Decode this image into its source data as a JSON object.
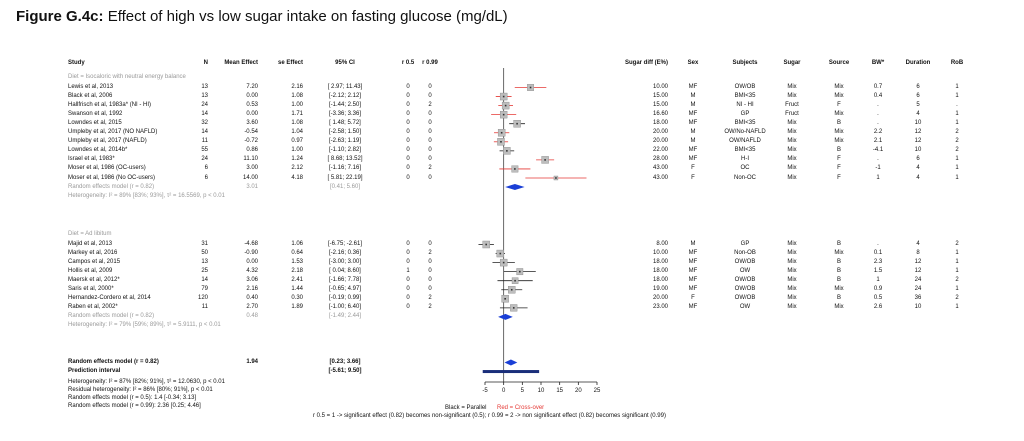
{
  "title": {
    "label": "Figure G.4c:",
    "text": "Effect of high vs low sugar intake on fasting glucose (mg/dL)"
  },
  "headers": {
    "study": "Study",
    "n": "N",
    "mean": "Mean Effect",
    "se": "se Effect",
    "ci": "95% CI",
    "r05": "r 0.5",
    "r099": "r 0.99",
    "sugar_diff": "Sugar diff (E%)",
    "sex": "Sex",
    "subjects": "Subjects",
    "sugar": "Sugar",
    "source": "Source",
    "bw": "BW*",
    "duration": "Duration",
    "rob": "RoB"
  },
  "groups": [
    {
      "label": "Diet = Isocaloric with neutral energy balance",
      "rows": [
        {
          "study": "Lewis et al, 2013",
          "n": "13",
          "mean": "7.20",
          "se": "2.16",
          "ci": "[ 2.97; 11.43]",
          "r05": "0",
          "r099": "0",
          "sugar_diff": "10.00",
          "sex": "MF",
          "subjects": "OW/OB",
          "sugar": "Mix",
          "source": "Mix",
          "bw": "0.7",
          "duration": "6",
          "rob": "1"
        },
        {
          "study": "Black et al, 2006",
          "n": "13",
          "mean": "0.00",
          "se": "1.08",
          "ci": "[-2.12; 2.12]",
          "r05": "0",
          "r099": "0",
          "sugar_diff": "15.00",
          "sex": "M",
          "subjects": "BMI<35",
          "sugar": "Mix",
          "source": "Mix",
          "bw": "0.4",
          "duration": "6",
          "rob": "1"
        },
        {
          "study": "Hallfrisch et al, 1983a* (NI - HI)",
          "n": "24",
          "mean": "0.53",
          "se": "1.00",
          "ci": "[-1.44; 2.50]",
          "r05": "0",
          "r099": "2",
          "sugar_diff": "15.00",
          "sex": "M",
          "subjects": "NI - HI",
          "sugar": "Fruct",
          "source": "F",
          "bw": ".",
          "duration": "5",
          "rob": "."
        },
        {
          "study": "Swanson et al, 1992",
          "n": "14",
          "mean": "0.00",
          "se": "1.71",
          "ci": "[-3.36; 3.36]",
          "r05": "0",
          "r099": "0",
          "sugar_diff": "16.60",
          "sex": "MF",
          "subjects": "GP",
          "sugar": "Fruct",
          "source": "Mix",
          "bw": ".",
          "duration": "4",
          "rob": "1"
        },
        {
          "study": "Lowndes et al, 2015",
          "n": "32",
          "mean": "3.60",
          "se": "1.08",
          "ci": "[ 1.48; 5.72]",
          "r05": "0",
          "r099": "0",
          "sugar_diff": "18.00",
          "sex": "MF",
          "subjects": "BMI<35",
          "sugar": "Mix",
          "source": "B",
          "bw": ".",
          "duration": "10",
          "rob": "1"
        },
        {
          "study": "Umpleby et al, 2017 (NO NAFLD)",
          "n": "14",
          "mean": "-0.54",
          "se": "1.04",
          "ci": "[-2.58; 1.50]",
          "r05": "0",
          "r099": "0",
          "sugar_diff": "20.00",
          "sex": "M",
          "subjects": "OW/No-NAFLD",
          "sugar": "Mix",
          "source": "Mix",
          "bw": "2.2",
          "duration": "12",
          "rob": "2"
        },
        {
          "study": "Umpleby et al, 2017 (NAFLD)",
          "n": "11",
          "mean": "-0.72",
          "se": "0.97",
          "ci": "[-2.63; 1.19]",
          "r05": "0",
          "r099": "0",
          "sugar_diff": "20.00",
          "sex": "M",
          "subjects": "OW/NAFLD",
          "sugar": "Mix",
          "source": "Mix",
          "bw": "2.1",
          "duration": "12",
          "rob": "2"
        },
        {
          "study": "Lowndes et al, 2014b*",
          "n": "55",
          "mean": "0.86",
          "se": "1.00",
          "ci": "[-1.10; 2.82]",
          "r05": "0",
          "r099": "0",
          "sugar_diff": "22.00",
          "sex": "MF",
          "subjects": "BMI<35",
          "sugar": "Mix",
          "source": "B",
          "bw": "-4.1",
          "duration": "10",
          "rob": "2"
        },
        {
          "study": "Israel et al, 1983*",
          "n": "24",
          "mean": "11.10",
          "se": "1.24",
          "ci": "[ 8.68; 13.52]",
          "r05": "0",
          "r099": "0",
          "sugar_diff": "28.00",
          "sex": "MF",
          "subjects": "H-I",
          "sugar": "Mix",
          "source": "F",
          "bw": ".",
          "duration": "6",
          "rob": "1"
        },
        {
          "study": "Moser et al, 1986 (OC-users)",
          "n": "6",
          "mean": "3.00",
          "se": "2.12",
          "ci": "[-1.16; 7.16]",
          "r05": "0",
          "r099": "2",
          "sugar_diff": "43.00",
          "sex": "F",
          "subjects": "OC",
          "sugar": "Mix",
          "source": "F",
          "bw": "-1",
          "duration": "4",
          "rob": "1"
        },
        {
          "study": "Moser et al, 1986 (No OC-users)",
          "n": "6",
          "mean": "14.00",
          "se": "4.18",
          "ci": "[ 5.81; 22.19]",
          "r05": "0",
          "r099": "0",
          "sugar_diff": "43.00",
          "sex": "F",
          "subjects": "Non-OC",
          "sugar": "Mix",
          "source": "F",
          "bw": "1",
          "duration": "4",
          "rob": "1"
        }
      ],
      "summary": {
        "label": "Random effects model (r = 0.82)",
        "mean": "3.01",
        "ci": "[0.41; 5.60]"
      },
      "heterogeneity": "Heterogeneity: I² = 89% [83%; 93%], τ² = 16.5569, p < 0.01"
    },
    {
      "label": "Diet = Ad libitum",
      "rows": [
        {
          "study": "Majid et al, 2013",
          "n": "31",
          "mean": "-4.68",
          "se": "1.06",
          "ci": "[-6.75; -2.61]",
          "r05": "0",
          "r099": "0",
          "sugar_diff": "8.00",
          "sex": "M",
          "subjects": "GP",
          "sugar": "Mix",
          "source": "B",
          "bw": ".",
          "duration": "4",
          "rob": "2"
        },
        {
          "study": "Markey et al, 2016",
          "n": "50",
          "mean": "-0.90",
          "se": "0.64",
          "ci": "[-2.16; 0.36]",
          "r05": "0",
          "r099": "2",
          "sugar_diff": "10.00",
          "sex": "MF",
          "subjects": "Non-OB",
          "sugar": "Mix",
          "source": "Mix",
          "bw": "0.1",
          "duration": "8",
          "rob": "1"
        },
        {
          "study": "Campos et al, 2015",
          "n": "13",
          "mean": "0.00",
          "se": "1.53",
          "ci": "[-3.00; 3.00]",
          "r05": "0",
          "r099": "0",
          "sugar_diff": "18.00",
          "sex": "MF",
          "subjects": "OW/OB",
          "sugar": "Mix",
          "source": "B",
          "bw": "2.3",
          "duration": "12",
          "rob": "1"
        },
        {
          "study": "Hollis et al, 2009",
          "n": "25",
          "mean": "4.32",
          "se": "2.18",
          "ci": "[ 0.04; 8.60]",
          "r05": "1",
          "r099": "0",
          "sugar_diff": "18.00",
          "sex": "MF",
          "subjects": "OW",
          "sugar": "Mix",
          "source": "B",
          "bw": "1.5",
          "duration": "12",
          "rob": "1"
        },
        {
          "study": "Maersk et al, 2012*",
          "n": "14",
          "mean": "3.06",
          "se": "2.41",
          "ci": "[-1.66; 7.78]",
          "r05": "0",
          "r099": "0",
          "sugar_diff": "18.00",
          "sex": "MF",
          "subjects": "OW/OB",
          "sugar": "Mix",
          "source": "B",
          "bw": "1",
          "duration": "24",
          "rob": "2"
        },
        {
          "study": "Saris et al, 2000*",
          "n": "79",
          "mean": "2.16",
          "se": "1.44",
          "ci": "[-0.65; 4.97]",
          "r05": "0",
          "r099": "0",
          "sugar_diff": "19.00",
          "sex": "MF",
          "subjects": "OW/OB",
          "sugar": "Mix",
          "source": "Mix",
          "bw": "0.9",
          "duration": "24",
          "rob": "1"
        },
        {
          "study": "Hernandez-Cordero et al, 2014",
          "n": "120",
          "mean": "0.40",
          "se": "0.30",
          "ci": "[-0.19; 0.99]",
          "r05": "0",
          "r099": "2",
          "sugar_diff": "20.00",
          "sex": "F",
          "subjects": "OW/OB",
          "sugar": "Mix",
          "source": "B",
          "bw": "0.5",
          "duration": "36",
          "rob": "2"
        },
        {
          "study": "Raben et al, 2002*",
          "n": "11",
          "mean": "2.70",
          "se": "1.89",
          "ci": "[-1.00; 6.40]",
          "r05": "0",
          "r099": "2",
          "sugar_diff": "23.00",
          "sex": "MF",
          "subjects": "OW",
          "sugar": "Mix",
          "source": "Mix",
          "bw": "2.6",
          "duration": "10",
          "rob": "1"
        }
      ],
      "summary": {
        "label": "Random effects model (r = 0.82)",
        "mean": "0.48",
        "ci": "[-1.49; 2.44]"
      },
      "heterogeneity": "Heterogeneity: I² = 79% [59%; 89%], τ² = 5.9111, p < 0.01"
    }
  ],
  "overall": {
    "label": "Random effects model (r = 0.82)",
    "mean": "1.94",
    "ci": "[0.23; 3.66]",
    "pi_label": "Prediction interval",
    "pi_ci": "[-5.61; 9.50]"
  },
  "footnotes": [
    "Heterogeneity: I² = 87% [82%; 91%], τ² = 12.0630, p < 0.01",
    "Residual heterogeneity: I² = 86% [80%; 91%], p < 0.01",
    "Random effects model (r = 0.5): 1.4 [-0.34; 3.13]",
    "Random effects model (r = 0.99): 2.36 [0.25; 4.46]"
  ],
  "legend": {
    "black": "Black = Parallel",
    "red": "Red = Cross-over"
  },
  "note": "r 0.5 = 1 -> significant effect (0.82) becomes non-significant (0.5); r 0.99 = 2 -> non significant effect (0.82) becomes significant (0.99)",
  "colors": {
    "red": "#e53935",
    "summary": "#1a3fd6",
    "pi": "#1a2e7a",
    "box": "#bdbdbd"
  },
  "chart_data": {
    "type": "forest",
    "xlim": [
      -5,
      25
    ],
    "xticks": [
      -5,
      0,
      5,
      10,
      15,
      20,
      25
    ],
    "reference_line": 0,
    "studies": [
      {
        "group": 0,
        "mean": 7.2,
        "lo": 2.97,
        "hi": 11.43,
        "design": "cross-over"
      },
      {
        "group": 0,
        "mean": 0.0,
        "lo": -2.12,
        "hi": 2.12,
        "design": "cross-over"
      },
      {
        "group": 0,
        "mean": 0.53,
        "lo": -1.44,
        "hi": 2.5,
        "design": "cross-over"
      },
      {
        "group": 0,
        "mean": 0.0,
        "lo": -3.36,
        "hi": 3.36,
        "design": "cross-over"
      },
      {
        "group": 0,
        "mean": 3.6,
        "lo": 1.48,
        "hi": 5.72,
        "design": "parallel"
      },
      {
        "group": 0,
        "mean": -0.54,
        "lo": -2.58,
        "hi": 1.5,
        "design": "cross-over"
      },
      {
        "group": 0,
        "mean": -0.72,
        "lo": -2.63,
        "hi": 1.19,
        "design": "cross-over"
      },
      {
        "group": 0,
        "mean": 0.86,
        "lo": -1.1,
        "hi": 2.82,
        "design": "parallel"
      },
      {
        "group": 0,
        "mean": 11.1,
        "lo": 8.68,
        "hi": 13.52,
        "design": "cross-over"
      },
      {
        "group": 0,
        "mean": 3.0,
        "lo": -1.16,
        "hi": 7.16,
        "design": "cross-over"
      },
      {
        "group": 0,
        "mean": 14.0,
        "lo": 5.81,
        "hi": 22.19,
        "design": "cross-over"
      },
      {
        "group": 1,
        "mean": -4.68,
        "lo": -6.75,
        "hi": -2.61,
        "design": "parallel"
      },
      {
        "group": 1,
        "mean": -0.9,
        "lo": -2.16,
        "hi": 0.36,
        "design": "parallel"
      },
      {
        "group": 1,
        "mean": 0.0,
        "lo": -3.0,
        "hi": 3.0,
        "design": "parallel"
      },
      {
        "group": 1,
        "mean": 4.32,
        "lo": 0.04,
        "hi": 8.6,
        "design": "parallel"
      },
      {
        "group": 1,
        "mean": 3.06,
        "lo": -1.66,
        "hi": 7.78,
        "design": "parallel"
      },
      {
        "group": 1,
        "mean": 2.16,
        "lo": -0.65,
        "hi": 4.97,
        "design": "parallel"
      },
      {
        "group": 1,
        "mean": 0.4,
        "lo": -0.19,
        "hi": 0.99,
        "design": "parallel"
      },
      {
        "group": 1,
        "mean": 2.7,
        "lo": -1.0,
        "hi": 6.4,
        "design": "parallel"
      }
    ],
    "summaries": [
      {
        "group": 0,
        "mean": 3.01,
        "lo": 0.41,
        "hi": 5.6
      },
      {
        "group": 1,
        "mean": 0.48,
        "lo": -1.49,
        "hi": 2.44
      }
    ],
    "overall": {
      "mean": 1.94,
      "lo": 0.23,
      "hi": 3.66
    },
    "prediction_interval": {
      "lo": -5.61,
      "hi": 9.5
    }
  }
}
